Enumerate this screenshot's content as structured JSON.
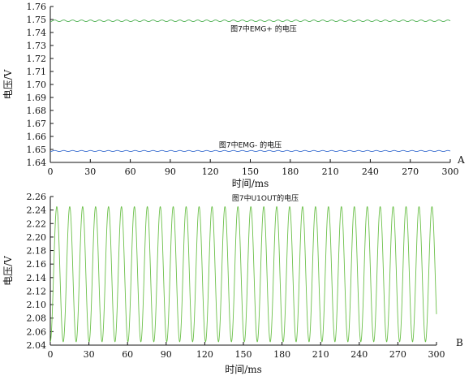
{
  "chart_data": [
    {
      "type": "line",
      "panel_label": "A",
      "xlabel": "时间/ms",
      "ylabel": "电压/V",
      "xlim": [
        0,
        300
      ],
      "ylim": [
        1.64,
        1.76
      ],
      "x_ticks": [
        0,
        30,
        60,
        90,
        120,
        150,
        180,
        210,
        240,
        270,
        300
      ],
      "y_ticks": [
        1.64,
        1.65,
        1.66,
        1.67,
        1.68,
        1.69,
        1.7,
        1.71,
        1.72,
        1.73,
        1.74,
        1.75,
        1.76
      ],
      "grid": false,
      "series": [
        {
          "name": "图7中EMG+ 的电压",
          "color": "#4caf50",
          "waveform": "sine",
          "mean": 1.749,
          "amplitude": 0.0006,
          "period_ms": 6.7,
          "x_range": [
            0,
            300
          ]
        },
        {
          "name": "图7中EMG- 的电压",
          "color": "#3b6fd0",
          "waveform": "sine",
          "mean": 1.6488,
          "amplitude": 0.0004,
          "period_ms": 6.7,
          "x_range": [
            0,
            300
          ]
        }
      ],
      "annotations": [
        {
          "text": "图7中EMG+ 的电压",
          "x": 160,
          "y": 1.741
        },
        {
          "text": "图7中EMG- 的电压",
          "x": 150,
          "y": 1.6515
        }
      ]
    },
    {
      "type": "line",
      "panel_label": "B",
      "xlabel": "时间/ms",
      "ylabel": "电压/V",
      "xlim": [
        0,
        300
      ],
      "ylim": [
        2.04,
        2.26
      ],
      "x_ticks": [
        0,
        30,
        60,
        90,
        120,
        150,
        180,
        210,
        240,
        270,
        300
      ],
      "y_ticks": [
        2.04,
        2.06,
        2.08,
        2.1,
        2.12,
        2.14,
        2.16,
        2.18,
        2.2,
        2.22,
        2.24,
        2.26
      ],
      "grid": false,
      "series": [
        {
          "name": "图7中U1OUT的电压",
          "color": "#6cc04a",
          "waveform": "sine",
          "mean": 2.145,
          "amplitude": 0.1,
          "period_ms": 10.05,
          "x_range": [
            0,
            300
          ]
        }
      ],
      "annotations": [
        {
          "text": "图7中U1OUT的电压",
          "x": 167,
          "y": 2.254
        }
      ]
    }
  ]
}
